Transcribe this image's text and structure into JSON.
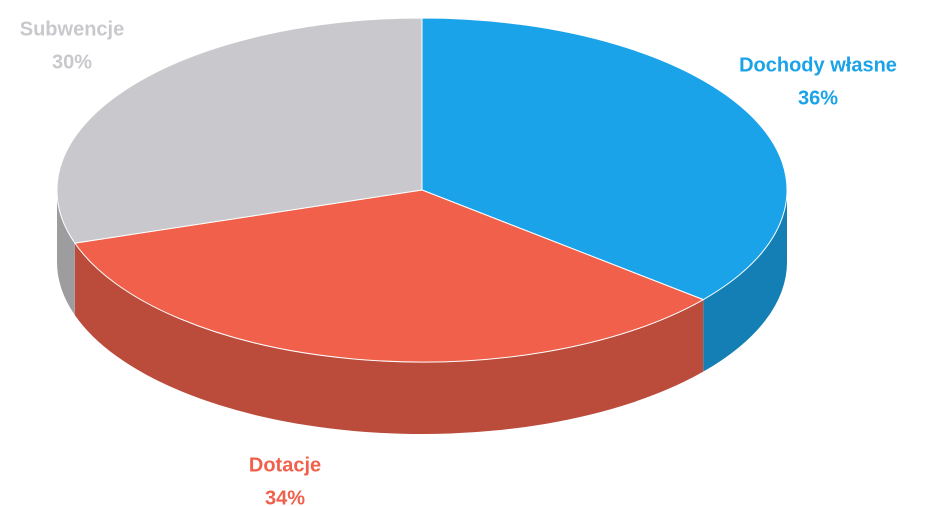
{
  "chart_data": {
    "type": "pie",
    "categories": [
      "Dochody własne",
      "Dotacje",
      "Subwencje"
    ],
    "values": [
      36,
      34,
      30
    ],
    "value_labels": [
      "36%",
      "34%",
      "30%"
    ],
    "colors": [
      "#1aa3e8",
      "#f0604a",
      "#c9c9cd"
    ]
  }
}
